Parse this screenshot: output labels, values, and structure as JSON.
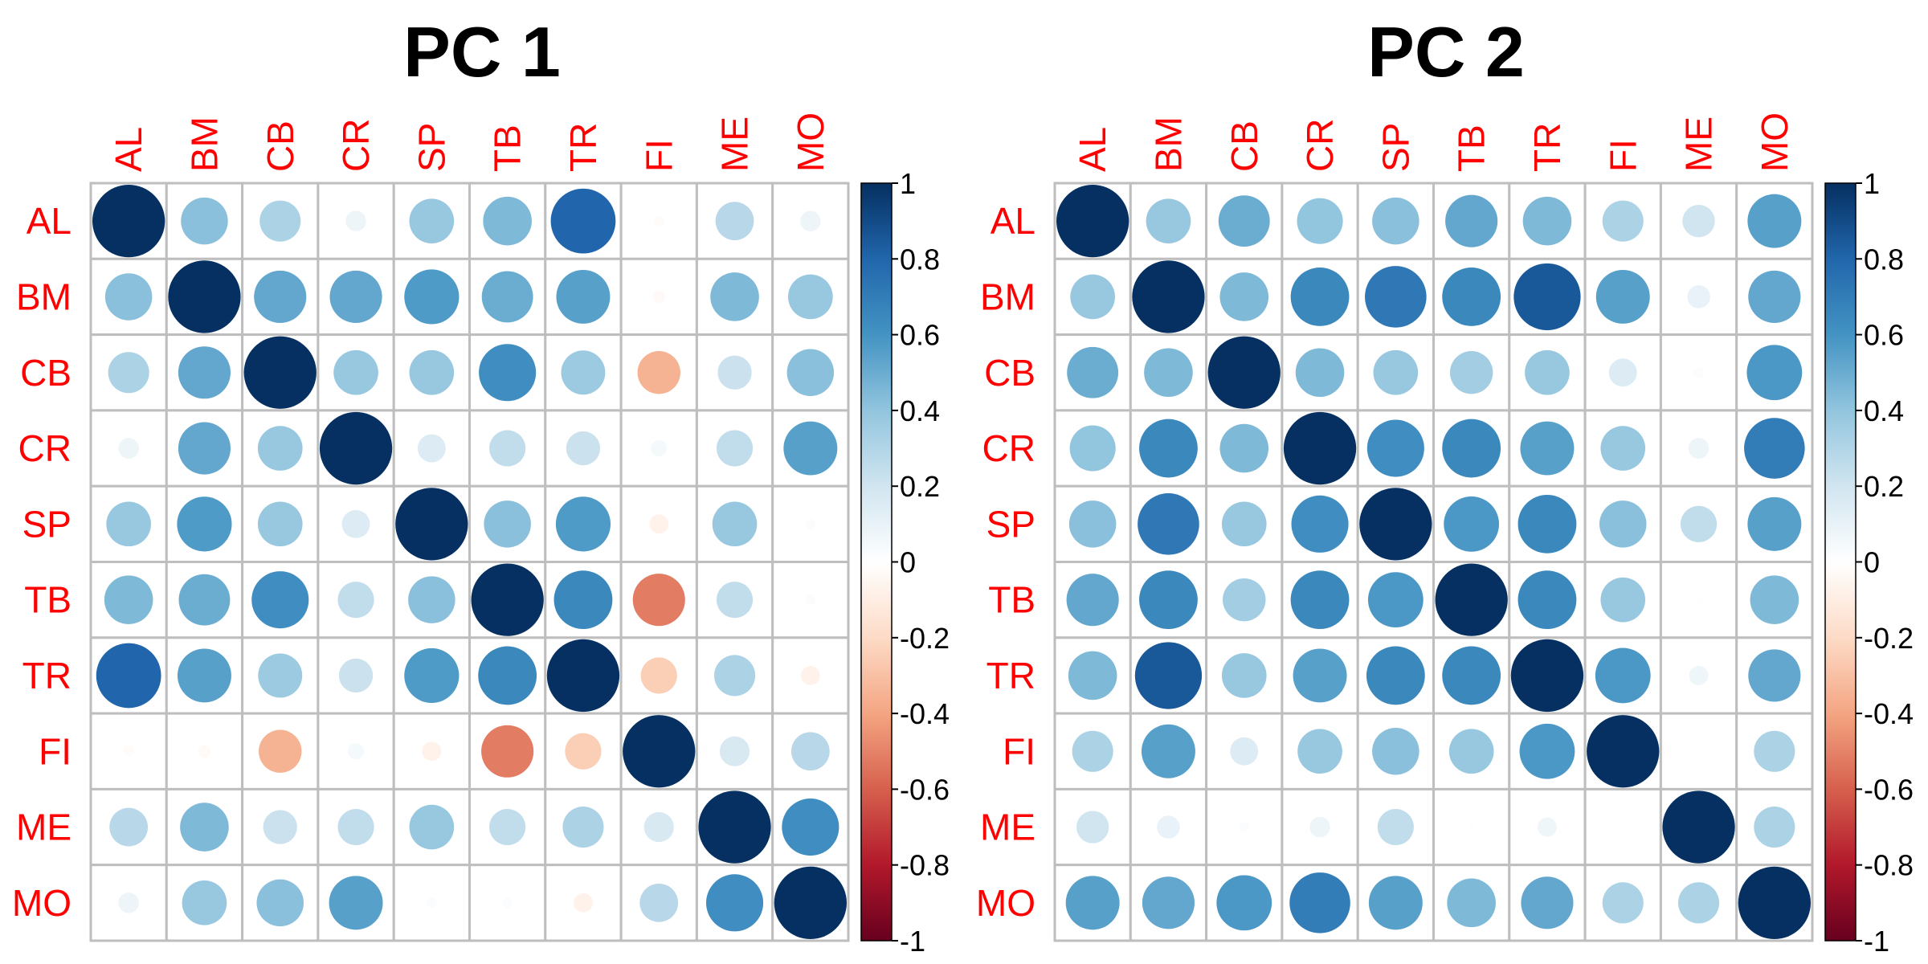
{
  "chart_data": [
    {
      "type": "heatmap",
      "title": "PC 1",
      "variables": [
        "AL",
        "BM",
        "CB",
        "CR",
        "SP",
        "TB",
        "TR",
        "FI",
        "ME",
        "MO"
      ],
      "value_range": [
        -1,
        1
      ],
      "colorbar_ticks": [
        "1",
        "0.8",
        "0.6",
        "0.4",
        "0.2",
        "0",
        "-0.2",
        "-0.4",
        "-0.6",
        "-0.8",
        "-1"
      ],
      "grid": true,
      "legend": "right",
      "matrix": [
        [
          1.0,
          0.42,
          0.32,
          0.08,
          0.38,
          0.45,
          0.8,
          -0.02,
          0.28,
          0.08
        ],
        [
          0.42,
          1.0,
          0.52,
          0.52,
          0.57,
          0.5,
          0.55,
          -0.03,
          0.45,
          0.38
        ],
        [
          0.32,
          0.52,
          1.0,
          0.38,
          0.38,
          0.62,
          0.37,
          -0.35,
          0.22,
          0.42
        ],
        [
          0.08,
          0.52,
          0.38,
          1.0,
          0.15,
          0.25,
          0.22,
          0.05,
          0.25,
          0.55
        ],
        [
          0.38,
          0.57,
          0.38,
          0.15,
          1.0,
          0.42,
          0.57,
          -0.07,
          0.38,
          0.02
        ],
        [
          0.45,
          0.5,
          0.62,
          0.25,
          0.42,
          1.0,
          0.65,
          -0.52,
          0.25,
          0.02
        ],
        [
          0.8,
          0.55,
          0.37,
          0.22,
          0.57,
          0.65,
          1.0,
          -0.25,
          0.32,
          -0.07
        ],
        [
          -0.02,
          -0.03,
          -0.35,
          0.05,
          -0.07,
          -0.52,
          -0.25,
          1.0,
          0.17,
          0.28
        ],
        [
          0.28,
          0.45,
          0.22,
          0.25,
          0.38,
          0.25,
          0.32,
          0.17,
          1.0,
          0.62
        ],
        [
          0.08,
          0.38,
          0.42,
          0.55,
          0.02,
          0.02,
          -0.07,
          0.28,
          0.62,
          1.0
        ]
      ]
    },
    {
      "type": "heatmap",
      "title": "PC 2",
      "variables": [
        "AL",
        "BM",
        "CB",
        "CR",
        "SP",
        "TB",
        "TR",
        "FI",
        "ME",
        "MO"
      ],
      "value_range": [
        -1,
        1
      ],
      "colorbar_ticks": [
        "1",
        "0.8",
        "0.6",
        "0.4",
        "0.2",
        "0",
        "-0.2",
        "-0.4",
        "-0.6",
        "-0.8",
        "-1"
      ],
      "grid": true,
      "legend": "right",
      "matrix": [
        [
          1.0,
          0.38,
          0.5,
          0.4,
          0.42,
          0.52,
          0.45,
          0.32,
          0.2,
          0.55
        ],
        [
          0.38,
          1.0,
          0.45,
          0.65,
          0.72,
          0.65,
          0.85,
          0.55,
          0.1,
          0.52
        ],
        [
          0.5,
          0.45,
          1.0,
          0.45,
          0.38,
          0.35,
          0.38,
          0.15,
          0.02,
          0.58
        ],
        [
          0.4,
          0.65,
          0.45,
          1.0,
          0.62,
          0.65,
          0.55,
          0.38,
          0.08,
          0.7
        ],
        [
          0.42,
          0.72,
          0.38,
          0.62,
          1.0,
          0.58,
          0.65,
          0.42,
          0.25,
          0.55
        ],
        [
          0.52,
          0.65,
          0.35,
          0.65,
          0.58,
          1.0,
          0.65,
          0.38,
          0.01,
          0.45
        ],
        [
          0.45,
          0.85,
          0.38,
          0.55,
          0.65,
          0.65,
          1.0,
          0.58,
          0.07,
          0.52
        ],
        [
          0.32,
          0.55,
          0.15,
          0.38,
          0.42,
          0.38,
          0.58,
          1.0,
          0.0,
          0.32
        ],
        [
          0.2,
          0.1,
          0.02,
          0.08,
          0.25,
          0.01,
          0.07,
          0.0,
          1.0,
          0.32
        ],
        [
          0.55,
          0.52,
          0.58,
          0.7,
          0.55,
          0.45,
          0.52,
          0.32,
          0.32,
          1.0
        ]
      ]
    }
  ],
  "colors": {
    "label": "#ff0000",
    "grid": "#bebebe",
    "scale": [
      "#67001f",
      "#b2182b",
      "#d6604d",
      "#f4a582",
      "#fddbc7",
      "#ffffff",
      "#d1e5f0",
      "#92c5de",
      "#4393c3",
      "#2166ac",
      "#053061"
    ]
  }
}
